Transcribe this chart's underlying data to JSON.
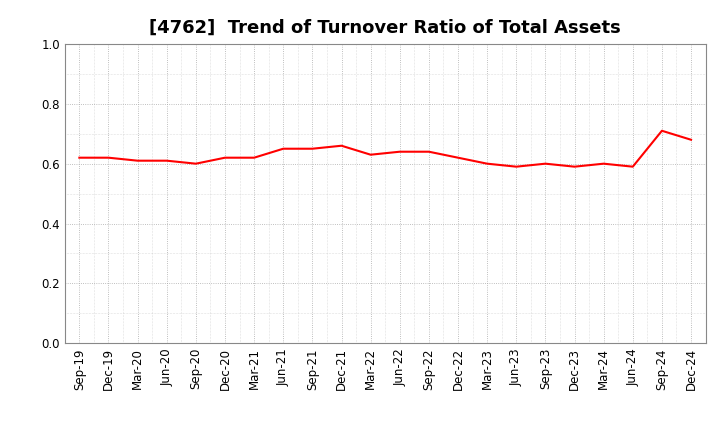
{
  "title": "[4762]  Trend of Turnover Ratio of Total Assets",
  "x_labels": [
    "Sep-19",
    "Dec-19",
    "Mar-20",
    "Jun-20",
    "Sep-20",
    "Dec-20",
    "Mar-21",
    "Jun-21",
    "Sep-21",
    "Dec-21",
    "Mar-22",
    "Jun-22",
    "Sep-22",
    "Dec-22",
    "Mar-23",
    "Jun-23",
    "Sep-23",
    "Dec-23",
    "Mar-24",
    "Jun-24",
    "Sep-24",
    "Dec-24"
  ],
  "values": [
    0.62,
    0.62,
    0.61,
    0.61,
    0.6,
    0.62,
    0.62,
    0.65,
    0.65,
    0.66,
    0.63,
    0.64,
    0.64,
    0.62,
    0.6,
    0.59,
    0.6,
    0.59,
    0.6,
    0.59,
    0.71,
    0.68
  ],
  "line_color": "#FF0000",
  "line_width": 1.5,
  "ylim": [
    0.0,
    1.0
  ],
  "yticks": [
    0.0,
    0.2,
    0.4,
    0.6,
    0.8,
    1.0
  ],
  "grid_color": "#aaaaaa",
  "background_color": "#ffffff",
  "title_fontsize": 13,
  "tick_fontsize": 8.5
}
